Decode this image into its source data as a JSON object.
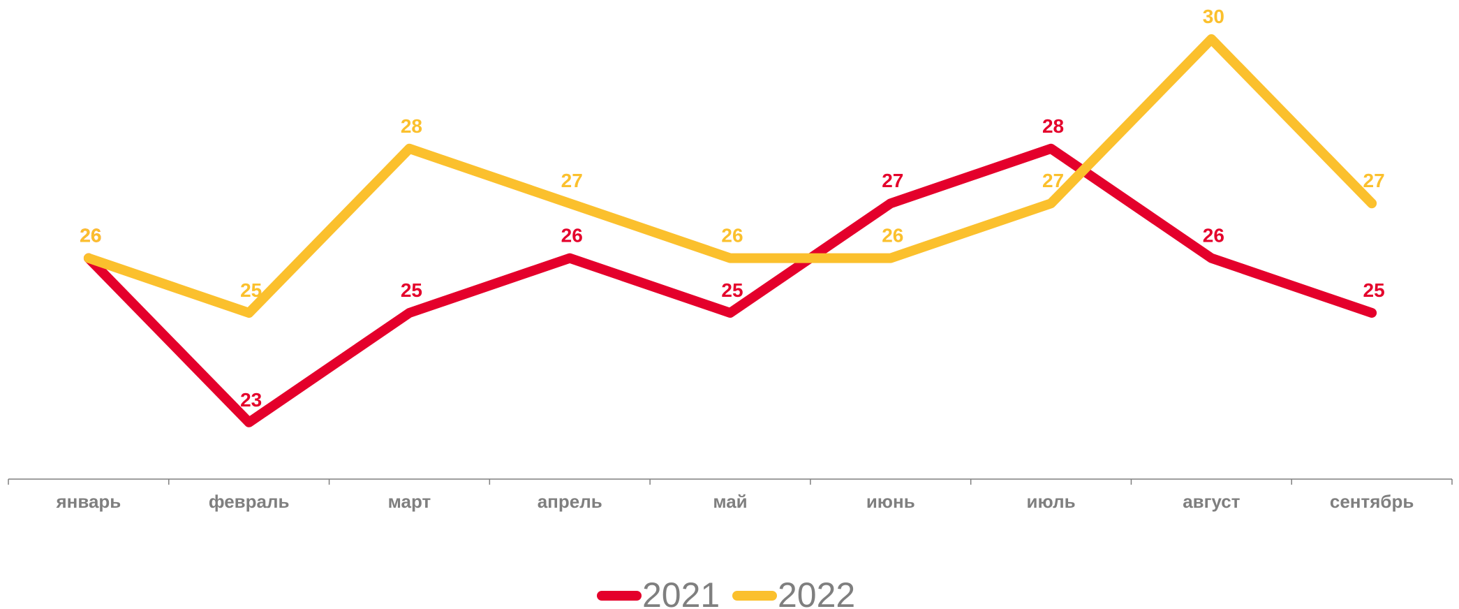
{
  "chart_data": {
    "type": "line",
    "title": "",
    "xlabel": "",
    "ylabel": "",
    "categories": [
      "январь",
      "февраль",
      "март",
      "апрель",
      "май",
      "июнь",
      "июль",
      "август",
      "сентябрь"
    ],
    "series": [
      {
        "name": "2021",
        "color": "#e4002b",
        "values": [
          26,
          23,
          25,
          26,
          25,
          27,
          28,
          26,
          25
        ],
        "labels": [
          "26",
          "23",
          "25",
          "26",
          "25",
          "27",
          "28",
          "26",
          "25"
        ]
      },
      {
        "name": "2022",
        "color": "#fbc02d",
        "values": [
          26,
          25,
          28,
          27,
          26,
          26,
          27,
          30,
          27
        ],
        "labels": [
          "26",
          "25",
          "28",
          "27",
          "26",
          "26",
          "27",
          "30",
          "27"
        ]
      }
    ],
    "ylim": [
      20,
      30.5
    ],
    "grid": false,
    "legend_position": "bottom-center",
    "axis_color": "#7f7f7f"
  }
}
